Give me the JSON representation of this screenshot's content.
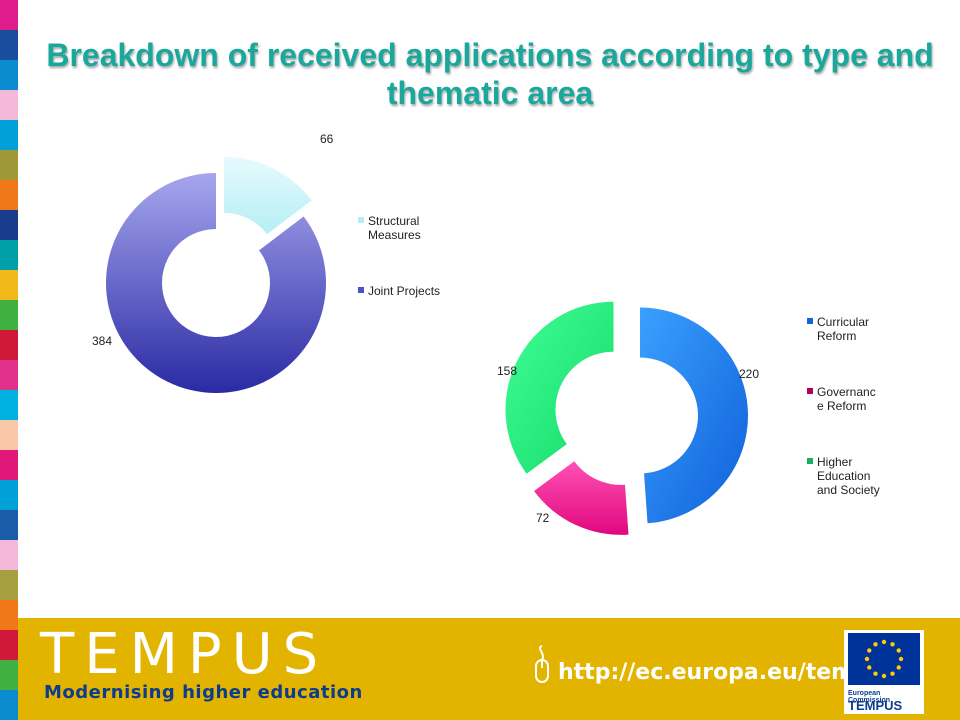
{
  "title": "Breakdown of received applications according to type and thematic area",
  "chart_data": [
    {
      "type": "pie",
      "variant": "exploded-doughnut",
      "categories": [
        "Structural Measures",
        "Joint Projects"
      ],
      "values": [
        66,
        384
      ],
      "colors": [
        "#c8f4f8",
        "#6a6ad8"
      ],
      "legend": "right"
    },
    {
      "type": "pie",
      "variant": "exploded-doughnut",
      "categories": [
        "Curricular Reform",
        "Governanc e Reform",
        "Higher Education and Society"
      ],
      "legend_lines": [
        [
          "Curricular",
          "Reform"
        ],
        [
          "Governanc",
          "e Reform"
        ],
        [
          "Higher",
          "Education",
          "and Society"
        ]
      ],
      "values": [
        220,
        72,
        158
      ],
      "colors": [
        "#2080f0",
        "#f01e96",
        "#22ee7a"
      ],
      "legend": "right"
    }
  ],
  "footer": {
    "brand": "TEMPUS",
    "tagline": "Modernising higher education",
    "url": "http://ec.europa.eu/tempus",
    "logo_org": "European Commission",
    "logo_program": "TEMPUS"
  }
}
